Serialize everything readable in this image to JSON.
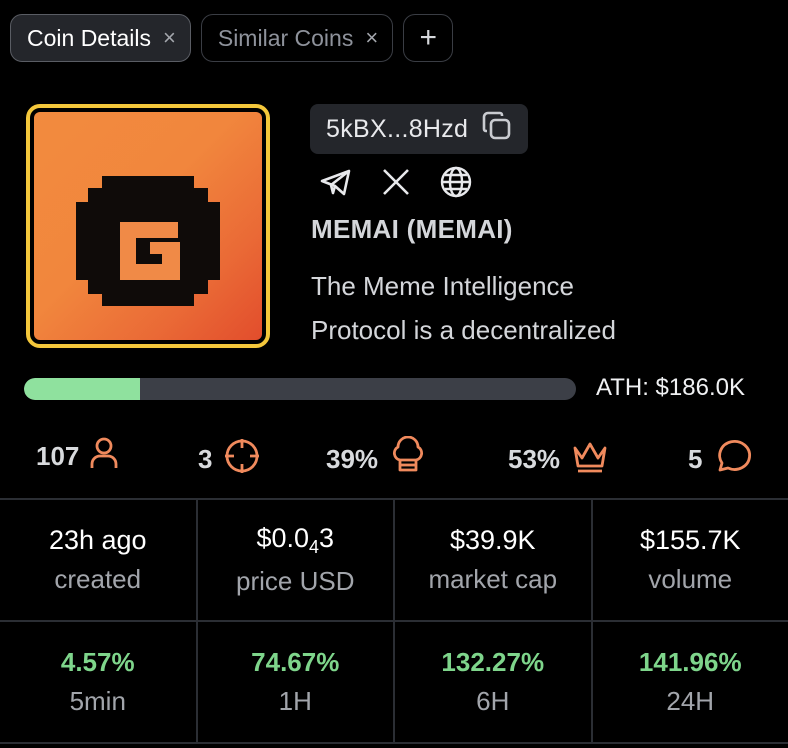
{
  "tabs": [
    {
      "label": "Coin Details",
      "active": true
    },
    {
      "label": "Similar Coins",
      "active": false
    }
  ],
  "add_tab_label": "+",
  "close_glyph": "×",
  "coin": {
    "address": "5kBX...8Hzd",
    "name": "MEMAI (MEMAI)",
    "description_line1": "The Meme Intelligence",
    "description_line2": "Protocol is a decentralized",
    "logo_letter": "G"
  },
  "progress": {
    "fill_fraction": 0.21,
    "ath": "ATH: $186.0K"
  },
  "stats": [
    {
      "value": "107",
      "icon": "person-icon"
    },
    {
      "value": "3",
      "icon": "crosshair-icon"
    },
    {
      "value": "39%",
      "icon": "chef-hat-icon"
    },
    {
      "value": "53%",
      "icon": "crown-icon"
    },
    {
      "value": "5",
      "icon": "chat-bubble-icon"
    }
  ],
  "metrics": [
    {
      "value": "23h ago",
      "label": "created"
    },
    {
      "value_prefix": "$0.0",
      "value_sub": "4",
      "value_suffix": "3",
      "label": "price USD"
    },
    {
      "value": "$39.9K",
      "label": "market cap"
    },
    {
      "value": "$155.7K",
      "label": "volume"
    }
  ],
  "changes": [
    {
      "value": "4.57%",
      "label": "5min"
    },
    {
      "value": "74.67%",
      "label": "1H"
    },
    {
      "value": "132.27%",
      "label": "6H"
    },
    {
      "value": "141.96%",
      "label": "24H"
    }
  ],
  "colors": {
    "accent_orange": "#f08a5d",
    "positive_green": "#7ed58b",
    "progress_green": "#8fe19e",
    "logo_border": "#f4c73b"
  }
}
